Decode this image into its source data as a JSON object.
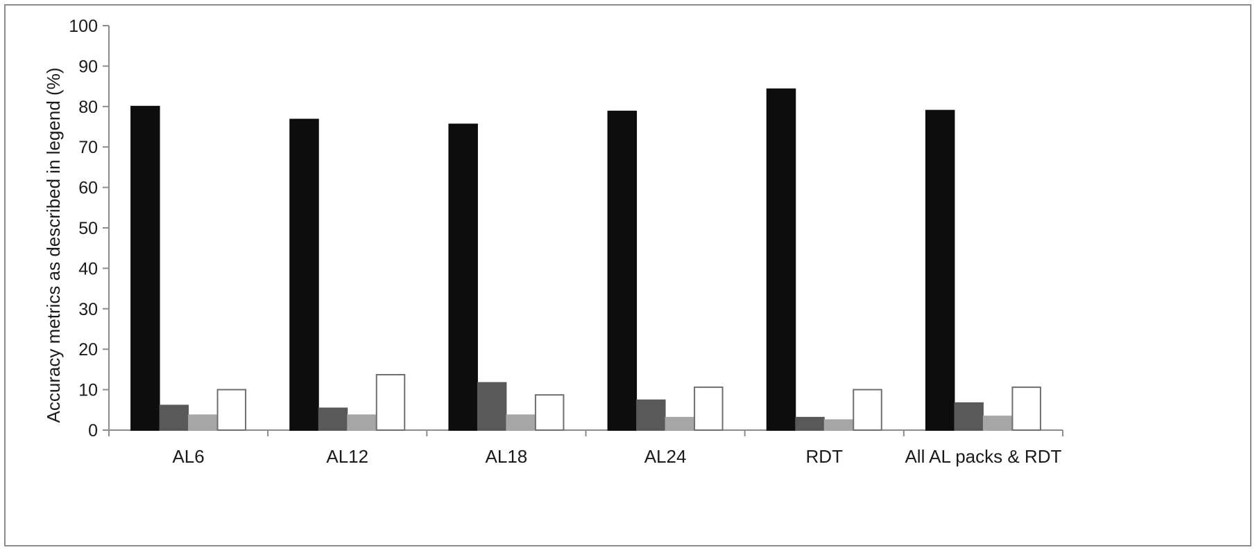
{
  "chart_data": {
    "type": "bar",
    "title": "",
    "xlabel": "",
    "ylabel": "Accuracy metrics as described in legend (%)",
    "ylim": [
      0,
      100
    ],
    "yticks": [
      0,
      10,
      20,
      30,
      40,
      50,
      60,
      70,
      80,
      90,
      100
    ],
    "grid": false,
    "legend": "none",
    "categories": [
      "AL6",
      "AL12",
      "AL18",
      "AL24",
      "RDT",
      "All AL packs & RDT"
    ],
    "series": [
      {
        "values": [
          80,
          76.8,
          75.6,
          78.8,
          84.3,
          79
        ],
        "color": "#0d0d0d"
      },
      {
        "values": [
          6.1,
          5.4,
          11.7,
          7.4,
          3.1,
          6.7
        ],
        "color": "#595959"
      },
      {
        "values": [
          3.7,
          3.7,
          3.7,
          3.1,
          2.5,
          3.4
        ],
        "color": "#a6a6a6"
      },
      {
        "values": [
          10,
          13.7,
          8.7,
          10.6,
          10,
          10.6
        ],
        "color": "#ffffff"
      }
    ]
  }
}
